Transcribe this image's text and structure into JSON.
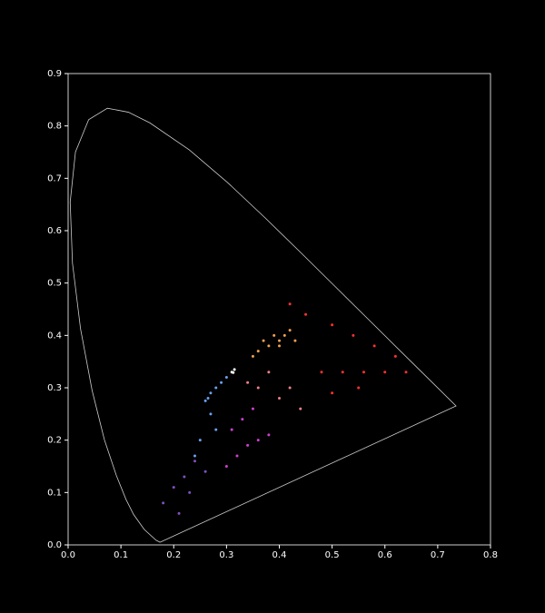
{
  "chart_data": {
    "type": "scatter",
    "xlim": [
      0,
      0.8
    ],
    "ylim": [
      0,
      0.9
    ],
    "xticks": [
      {
        "value": 0,
        "label": "0.0"
      },
      0.1,
      0.2,
      0.3,
      0.4,
      0.5,
      0.6,
      0.7,
      0.8
    ],
    "yticks": [
      {
        "value": 0,
        "label": "0.0"
      },
      0.1,
      0.2,
      0.3,
      0.4,
      0.5,
      0.6,
      0.7,
      0.8,
      0.9
    ],
    "background": "#000000",
    "axis_color": "#ffffff",
    "series": [
      {
        "kind": "line",
        "color": "#cccccc",
        "x": [
          0.1741,
          0.1666,
          0.144,
          0.1241,
          0.1096,
          0.0913,
          0.0687,
          0.0454,
          0.0235,
          0.0082,
          0.0039,
          0.0139,
          0.0389,
          0.0743,
          0.1142,
          0.1547,
          0.2296,
          0.3016,
          0.3731,
          0.4441,
          0.5125,
          0.5752,
          0.627,
          0.6915,
          0.7347,
          0.1741
        ],
        "y": [
          0.005,
          0.0089,
          0.0297,
          0.0578,
          0.0868,
          0.1327,
          0.2007,
          0.295,
          0.4127,
          0.5384,
          0.6548,
          0.7502,
          0.812,
          0.8338,
          0.8262,
          0.8059,
          0.7543,
          0.6923,
          0.6245,
          0.5547,
          0.4866,
          0.4242,
          0.3725,
          0.3083,
          0.2653,
          0.005
        ]
      },
      {
        "kind": "points",
        "color": "#ff3030",
        "x": [
          0.64,
          0.6,
          0.56,
          0.52,
          0.48,
          0.62,
          0.58,
          0.54,
          0.5,
          0.45,
          0.42,
          0.55,
          0.5
        ],
        "y": [
          0.33,
          0.33,
          0.33,
          0.33,
          0.33,
          0.36,
          0.38,
          0.4,
          0.42,
          0.44,
          0.46,
          0.3,
          0.29
        ]
      },
      {
        "kind": "points",
        "color": "#f0a050",
        "x": [
          0.36,
          0.38,
          0.4,
          0.41,
          0.39,
          0.37,
          0.35,
          0.42,
          0.43,
          0.4
        ],
        "y": [
          0.37,
          0.38,
          0.39,
          0.4,
          0.4,
          0.39,
          0.36,
          0.41,
          0.39,
          0.38
        ]
      },
      {
        "kind": "points",
        "color": "#f08080",
        "x": [
          0.34,
          0.36,
          0.4,
          0.44,
          0.38,
          0.42
        ],
        "y": [
          0.31,
          0.3,
          0.28,
          0.26,
          0.33,
          0.3
        ]
      },
      {
        "kind": "points",
        "color": "#d040d0",
        "x": [
          0.3,
          0.32,
          0.34,
          0.36,
          0.38,
          0.33,
          0.35,
          0.31
        ],
        "y": [
          0.15,
          0.17,
          0.19,
          0.2,
          0.21,
          0.24,
          0.26,
          0.22
        ]
      },
      {
        "kind": "points",
        "color": "#6aa0f0",
        "x": [
          0.26,
          0.265,
          0.27,
          0.28,
          0.29,
          0.3,
          0.27,
          0.28,
          0.25,
          0.24
        ],
        "y": [
          0.275,
          0.28,
          0.29,
          0.3,
          0.31,
          0.32,
          0.25,
          0.22,
          0.2,
          0.17
        ]
      },
      {
        "kind": "points",
        "color": "#8050c0",
        "x": [
          0.22,
          0.2,
          0.24,
          0.26,
          0.18,
          0.21,
          0.23
        ],
        "y": [
          0.13,
          0.11,
          0.16,
          0.14,
          0.08,
          0.06,
          0.1
        ]
      },
      {
        "kind": "points",
        "color": "#ffffff",
        "x": [
          0.3127,
          0.31,
          0.315
        ],
        "y": [
          0.329,
          0.33,
          0.335
        ]
      }
    ]
  }
}
